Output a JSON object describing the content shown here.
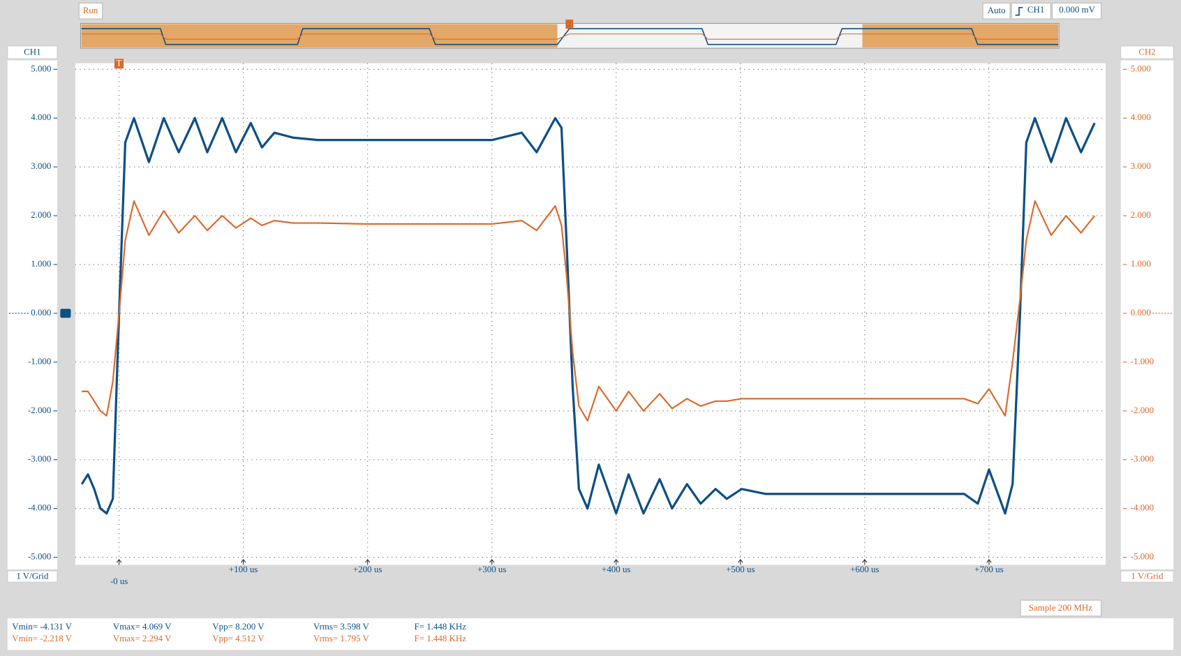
{
  "toolbar": {
    "status": "Run",
    "trigger_mode": "Auto",
    "trigger_source": "CH1",
    "trigger_level": "0.000 mV",
    "sample_rate": "Sample 200 MHz"
  },
  "chart_data": {
    "type": "line",
    "grid": true,
    "xlim": [
      -35.2,
      793.9
    ],
    "xticks": [
      {
        "value": 0,
        "label": "-0 us"
      },
      {
        "value": 100,
        "label": "+100 us"
      },
      {
        "value": 200,
        "label": "+200 us"
      },
      {
        "value": 300,
        "label": "+300 us"
      },
      {
        "value": 400,
        "label": "+400 us"
      },
      {
        "value": 500,
        "label": "+500 us"
      },
      {
        "value": 600,
        "label": "+600 us"
      },
      {
        "value": 700,
        "label": "+700 us"
      }
    ],
    "ylim": [
      -5.154,
      5.123
    ],
    "y2lim": [
      -5.154,
      5.123
    ],
    "ylabel": "1 V/Grid",
    "y2label": "1 V/Grid",
    "yticks": [
      {
        "value": 5,
        "label": "5.000"
      },
      {
        "value": 4,
        "label": "4.000"
      },
      {
        "value": 3,
        "label": "3.000"
      },
      {
        "value": 2,
        "label": "2.000"
      },
      {
        "value": 1,
        "label": "1.000"
      },
      {
        "value": 0,
        "label": "0.000"
      },
      {
        "value": -1,
        "label": "-1.000"
      },
      {
        "value": -2,
        "label": "-2.000"
      },
      {
        "value": -3,
        "label": "-3.000"
      },
      {
        "value": -4,
        "label": "-4.000"
      },
      {
        "value": -5,
        "label": "-5.000"
      }
    ],
    "y2ticks": [
      {
        "value": 5,
        "label": "5.000"
      },
      {
        "value": 4,
        "label": "4.000"
      },
      {
        "value": 3,
        "label": "3.000"
      },
      {
        "value": 2,
        "label": "2.000"
      },
      {
        "value": 1,
        "label": "1.000"
      },
      {
        "value": 0,
        "label": "0.000"
      },
      {
        "value": -1,
        "label": "-1.000"
      },
      {
        "value": -2,
        "label": "-2.000"
      },
      {
        "value": -3,
        "label": "-3.000"
      },
      {
        "value": -4,
        "label": "-4.000"
      },
      {
        "value": -5,
        "label": "-5.000"
      }
    ],
    "x": [
      -30,
      -25,
      -20,
      -15,
      -10,
      -5,
      0,
      5,
      12,
      24,
      36,
      48,
      61,
      71,
      83,
      94,
      106,
      115,
      125,
      140,
      160,
      200,
      250,
      300,
      324,
      336,
      351,
      356,
      360,
      365,
      370,
      377,
      386,
      400,
      410,
      422,
      435,
      445,
      457,
      468,
      480,
      489,
      501,
      520,
      600,
      680,
      691,
      700,
      713,
      719,
      725,
      730,
      737,
      750,
      762,
      774,
      785
    ],
    "series": [
      {
        "name": "CH1",
        "color": "#0e4f85",
        "values": [
          -3.5,
          -3.3,
          -3.6,
          -4.0,
          -4.1,
          -3.8,
          0.0,
          3.5,
          4.0,
          3.1,
          4.0,
          3.3,
          4.0,
          3.3,
          4.0,
          3.3,
          3.9,
          3.4,
          3.7,
          3.6,
          3.55,
          3.55,
          3.55,
          3.55,
          3.7,
          3.3,
          4.0,
          3.8,
          1.5,
          -1.5,
          -3.6,
          -4.0,
          -3.1,
          -4.1,
          -3.3,
          -4.1,
          -3.4,
          -4.0,
          -3.5,
          -3.9,
          -3.6,
          -3.8,
          -3.6,
          -3.7,
          -3.7,
          -3.7,
          -3.9,
          -3.2,
          -4.1,
          -3.5,
          0.0,
          3.5,
          4.0,
          3.1,
          4.0,
          3.3,
          3.9
        ]
      },
      {
        "name": "CH2",
        "color": "#d9692b",
        "axis": "y2",
        "values": [
          -1.6,
          -1.6,
          -1.8,
          -2.0,
          -2.1,
          -1.4,
          0.0,
          1.5,
          2.3,
          1.6,
          2.1,
          1.65,
          2.0,
          1.7,
          2.0,
          1.75,
          1.95,
          1.8,
          1.9,
          1.85,
          1.85,
          1.83,
          1.83,
          1.83,
          1.9,
          1.7,
          2.2,
          1.8,
          0.8,
          -0.8,
          -1.9,
          -2.2,
          -1.5,
          -2.0,
          -1.6,
          -2.0,
          -1.65,
          -1.95,
          -1.75,
          -1.9,
          -1.8,
          -1.8,
          -1.75,
          -1.75,
          -1.75,
          -1.75,
          -1.85,
          -1.55,
          -2.1,
          -1.0,
          0.3,
          1.5,
          2.3,
          1.6,
          2.0,
          1.65,
          2.0
        ]
      }
    ]
  },
  "measurements": [
    {
      "items": [
        "Vmin= -4.131 V",
        "Vmax= 4.069 V",
        "Vpp= 8.200 V",
        "Vrms= 3.598 V",
        "F= 1.448 KHz"
      ]
    },
    {
      "items": [
        "Vmin= -2.218 V",
        "Vmax= 2.294 V",
        "Vpp= 4.512 V",
        "Vrms= 1.795 V",
        "F= 1.448 KHz"
      ]
    }
  ]
}
